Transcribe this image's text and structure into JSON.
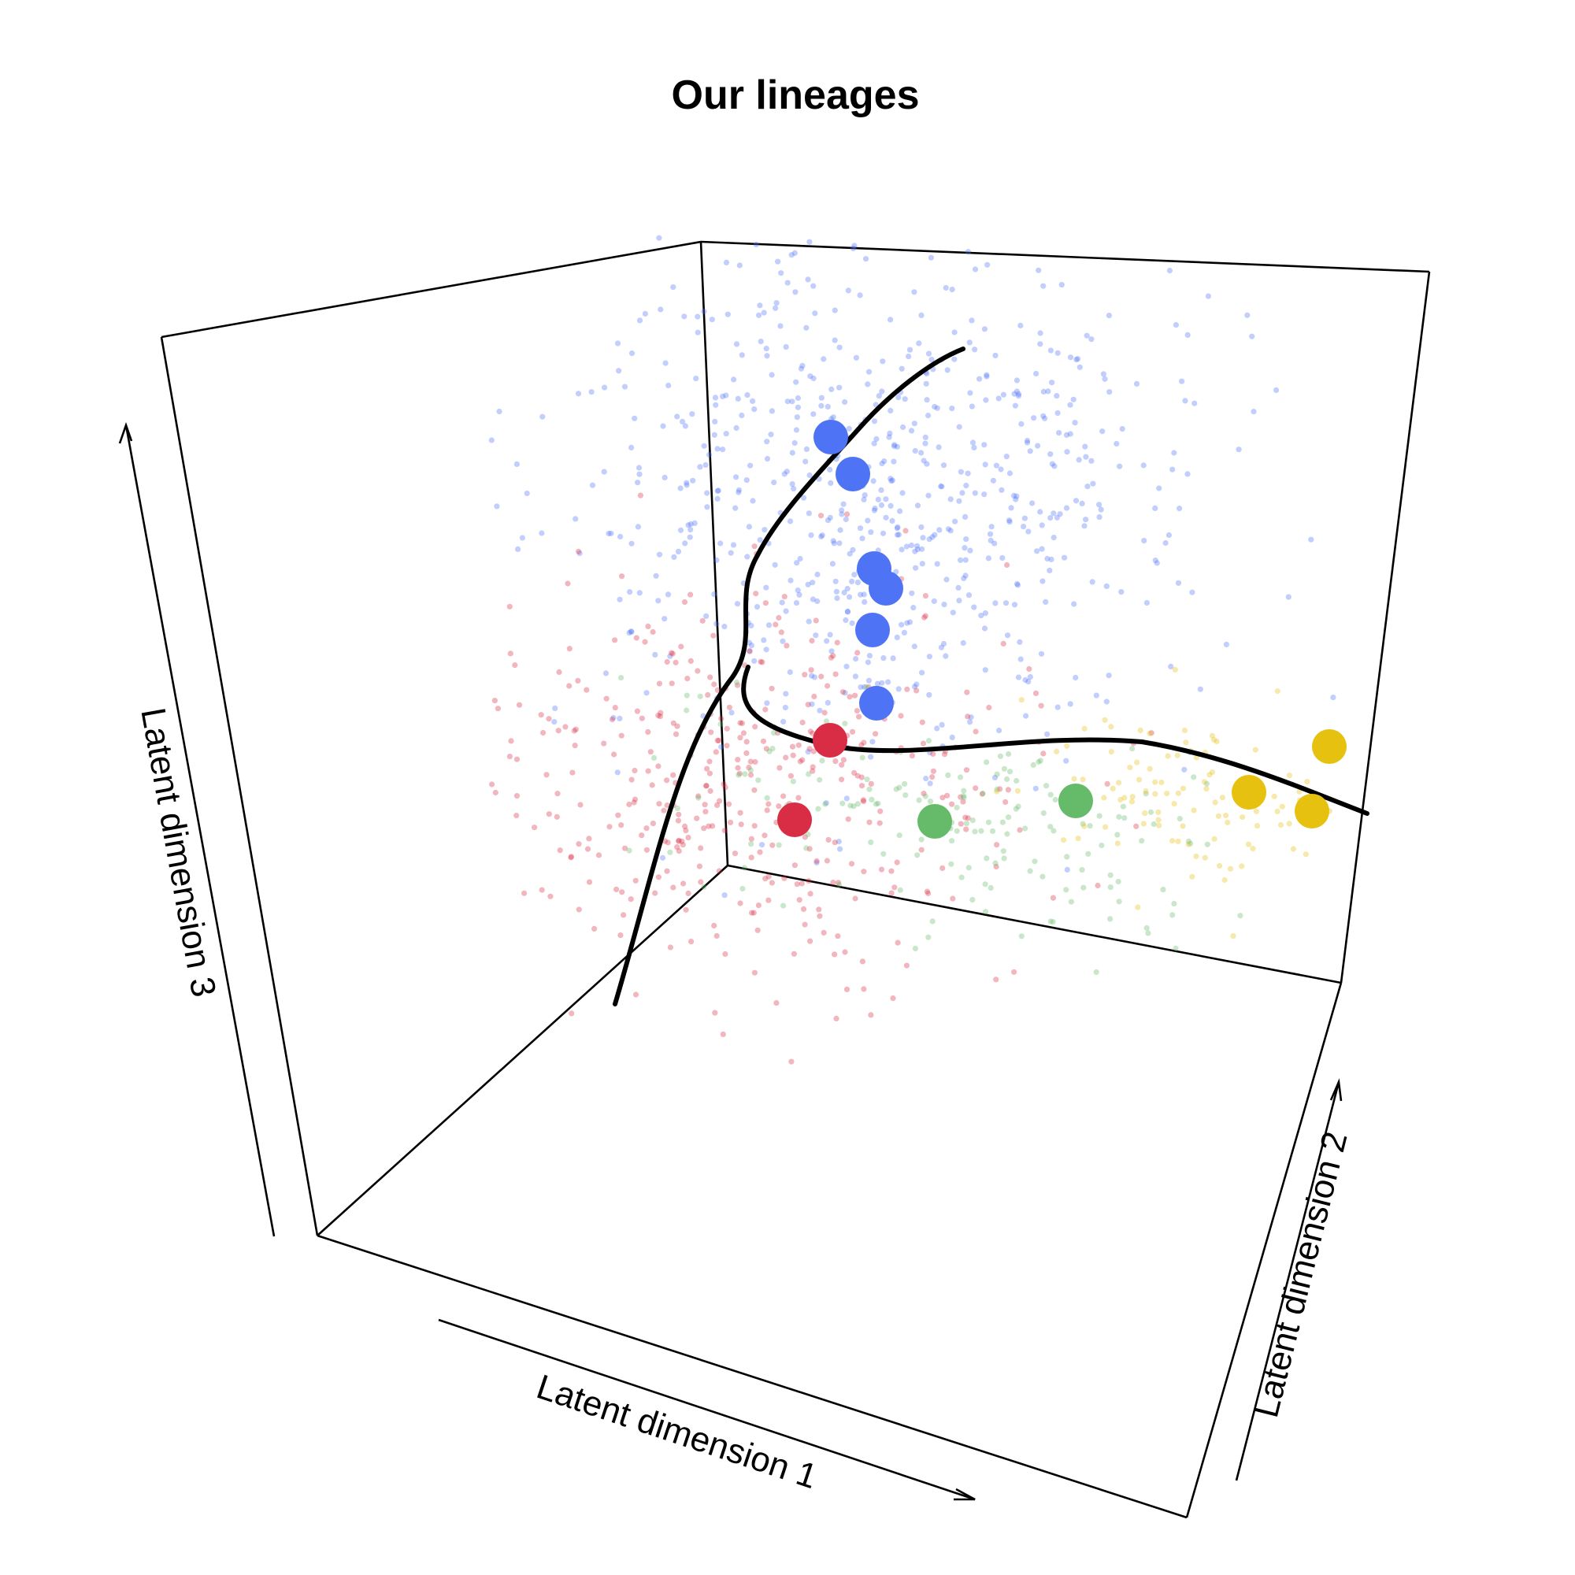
{
  "chart_data": {
    "type": "scatter",
    "projection": "3d",
    "title": "Our lineages",
    "xlabel": "Latent dimension 1",
    "ylabel": "Latent dimension 2",
    "zlabel": "Latent dimension 3",
    "grid": false,
    "legend": "none",
    "colors": {
      "blue": "#4f73f5",
      "red": "#d92d45",
      "green": "#66bb6a",
      "yellow": "#e6c10f",
      "curve": "#000000",
      "point_alpha": 0.35
    },
    "clusters": [
      {
        "color": "blue",
        "count": 720
      },
      {
        "color": "red",
        "count": 430
      },
      {
        "color": "green",
        "count": 170
      },
      {
        "color": "yellow",
        "count": 110
      }
    ],
    "centroids": [
      {
        "color": "blue"
      },
      {
        "color": "blue"
      },
      {
        "color": "blue"
      },
      {
        "color": "blue"
      },
      {
        "color": "blue"
      },
      {
        "color": "blue"
      },
      {
        "color": "red"
      },
      {
        "color": "red"
      },
      {
        "color": "green"
      },
      {
        "color": "green"
      },
      {
        "color": "yellow"
      },
      {
        "color": "yellow"
      },
      {
        "color": "yellow"
      }
    ],
    "lineages": [
      {
        "name": ""
      },
      {
        "name": ""
      }
    ]
  }
}
